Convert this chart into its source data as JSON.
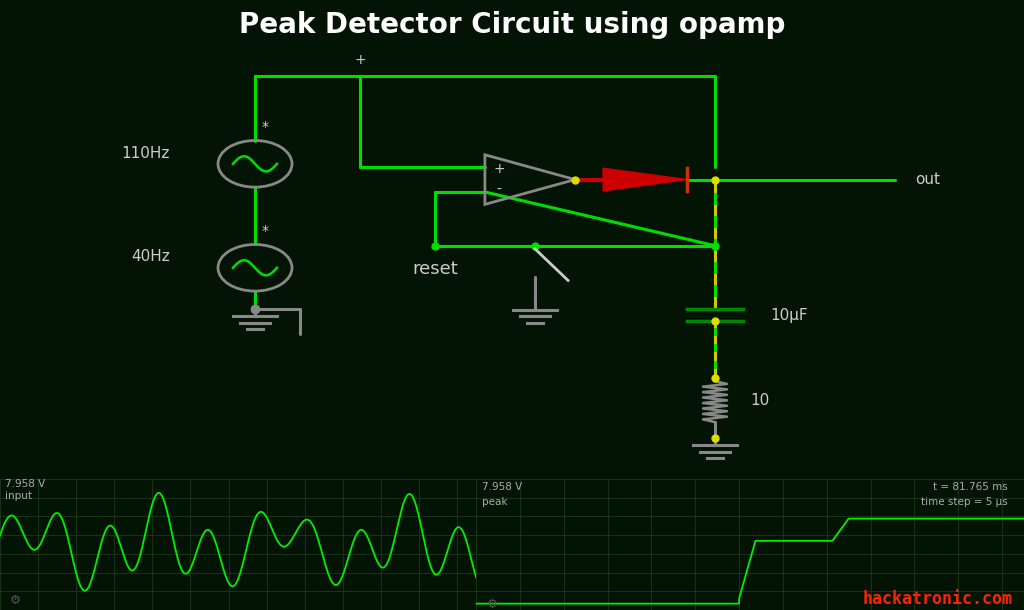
{
  "title": "Peak Detector Circuit using opamp",
  "title_color": "#ffffff",
  "title_fontsize": 20,
  "title_fontweight": "bold",
  "bg_color": "#041404",
  "circuit_color": "#00dd00",
  "opamp_color": "#888888",
  "text_color": "#cccccc",
  "hackatronic_color": "#ff2200",
  "scope_bg": "#041404",
  "scope_line_color": "#00ee00",
  "scope_grid_color": "#1a3a1a",
  "label_110hz": "110Hz",
  "label_40hz": "40Hz",
  "label_reset": "reset",
  "label_resistor": "10",
  "label_capacitor": "10μF",
  "label_out": "out",
  "label_voltage1": "7.958 V",
  "label_input": "input",
  "label_voltage2": "7.958 V",
  "label_peak": "peak",
  "label_time": "t = 81.765 ms",
  "label_timestep": "time step = 5 μs",
  "label_hackatronic": "hackatronic.com",
  "label_plus_opamp": "+",
  "label_minus_opamp": "-",
  "label_plus_src": "+"
}
